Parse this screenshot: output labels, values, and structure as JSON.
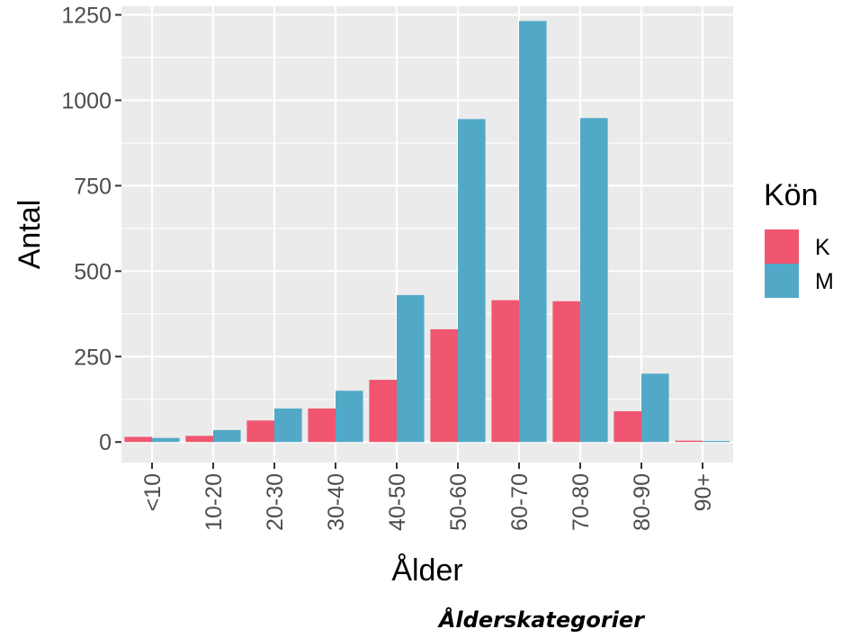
{
  "chart_data": {
    "type": "bar",
    "xlabel": "Ålder",
    "ylabel": "Antal",
    "caption": "Ålderskategorier",
    "categories": [
      "<10",
      "10-20",
      "20-30",
      "30-40",
      "40-50",
      "50-60",
      "60-70",
      "70-80",
      "80-90",
      "90+"
    ],
    "series": [
      {
        "name": "K",
        "color": "#f0566f",
        "values": [
          15,
          18,
          63,
          98,
          182,
          330,
          415,
          412,
          90,
          4
        ]
      },
      {
        "name": "M",
        "color": "#52a9c7",
        "values": [
          12,
          35,
          98,
          150,
          430,
          945,
          1232,
          948,
          200,
          3
        ]
      }
    ],
    "ylim": [
      -60,
      1275
    ],
    "yticks": [
      0,
      250,
      500,
      750,
      1000,
      1250
    ],
    "ytick_labels": [
      "0",
      "250",
      "500",
      "750",
      "1000",
      "1250"
    ],
    "grid": true,
    "legend": {
      "title": "Kön",
      "position": "right"
    },
    "panel_background": "#ebebeb",
    "grid_color": "#ffffff"
  }
}
